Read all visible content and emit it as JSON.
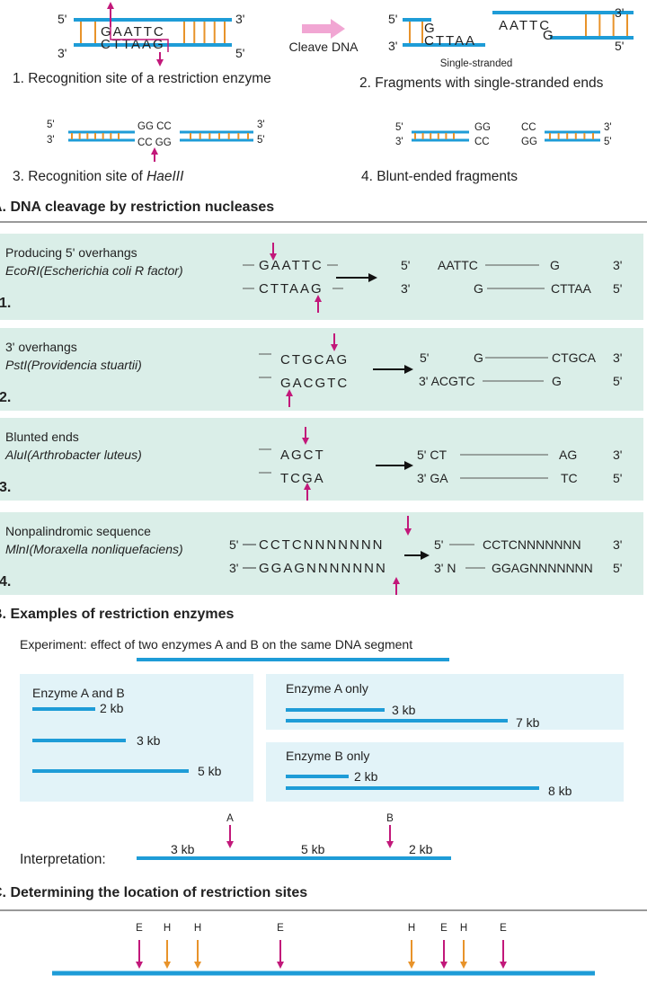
{
  "section_a": {
    "fig1": {
      "strand_labels": [
        "5'",
        "3'",
        "3'",
        "5'"
      ],
      "top_seq": "GAATTC",
      "bottom_seq": "CTTAAG",
      "caption": "1. Recognition site of a restriction enzyme"
    },
    "cleave_label": "Cleave DNA",
    "fig2": {
      "strand_labels": [
        "5'",
        "3'",
        "3'",
        "5'"
      ],
      "left_top": "G",
      "left_bottom": "CTTAA",
      "right_top": "AATTC",
      "right_bottom": "G",
      "note": "Single-stranded",
      "caption": "2. Fragments with single-stranded ends"
    },
    "fig3": {
      "strand_labels": [
        "5'",
        "3'",
        "3'",
        "5'"
      ],
      "top_seq": "GG CC",
      "bottom_seq": "CC GG",
      "caption_prefix": "3. Recognition site of ",
      "caption_enzyme": "HaeIII"
    },
    "fig4": {
      "strand_labels": [
        "5'",
        "3'",
        "3'",
        "5'"
      ],
      "left_top": "GG",
      "left_bottom": "CC",
      "right_top": "CC",
      "right_bottom": "GG",
      "caption": "4. Blunt-ended fragments"
    },
    "title": "A. DNA cleavage by restriction nucleases"
  },
  "section_b": {
    "rows": [
      {
        "title": "Producing 5' overhangs",
        "enzyme": "EcoRI",
        "organism": "(Escherichia coli R factor)",
        "number": "1.",
        "site_top": "GAATTC",
        "site_bottom": "CTTAAG",
        "result_top": [
          "5'",
          "AATTC",
          "G",
          "3'"
        ],
        "result_bottom": [
          "3'",
          "G",
          "CTTAA",
          "5'"
        ]
      },
      {
        "title": "3' overhangs",
        "enzyme": "PstI",
        "organism": "(Providencia stuartii)",
        "number": "2.",
        "site_top": "CTGCAG",
        "site_bottom": "GACGTC",
        "result_top": [
          "5'",
          "G",
          "CTGCA",
          "3'"
        ],
        "result_bottom": [
          "3' ACGTC",
          "G",
          "5'"
        ]
      },
      {
        "title": "Blunted ends",
        "enzyme": "AluI",
        "organism": "(Arthrobacter luteus)",
        "number": "3.",
        "site_top": "AGCT",
        "site_bottom": "TCGA",
        "result_top": [
          "5' CT",
          "AG",
          "3'"
        ],
        "result_bottom": [
          "3' GA",
          "TC",
          "5'"
        ]
      },
      {
        "title": "Nonpalindromic sequence",
        "enzyme": "MlnI",
        "organism": "(Moraxella nonliquefaciens)",
        "number": "4.",
        "site_top_prefix": "5'",
        "site_top": "CCTCNNNNNNN",
        "site_bottom_prefix": "3'",
        "site_bottom": "GGAGNNNNNNN",
        "result_top": [
          "5'",
          "CCTCNNNNNNN",
          "3'"
        ],
        "result_bottom": [
          "3' N",
          "GGAGNNNNNNN",
          "5'"
        ]
      }
    ],
    "title": "B. Examples of restriction enzymes"
  },
  "section_c": {
    "experiment": "Experiment: effect of two enzymes A and B on the same DNA segment",
    "both": {
      "label": "Enzyme A and B",
      "fragments": [
        "2 kb",
        "3 kb",
        "5 kb"
      ]
    },
    "a_only": {
      "label": "Enzyme A only",
      "fragments": [
        "3 kb",
        "7 kb"
      ]
    },
    "b_only": {
      "label": "Enzyme B only",
      "fragments": [
        "2 kb",
        "8 kb"
      ]
    },
    "interpretation": {
      "label": "Interpretation:",
      "sites": [
        "A",
        "B"
      ],
      "fragments": [
        "3 kb",
        "5 kb",
        "2 kb"
      ]
    },
    "title": "C. Determining the location of restriction sites"
  },
  "section_d": {
    "sites": [
      "E",
      "H",
      "H",
      "E",
      "H",
      "E",
      "H",
      "E"
    ]
  }
}
